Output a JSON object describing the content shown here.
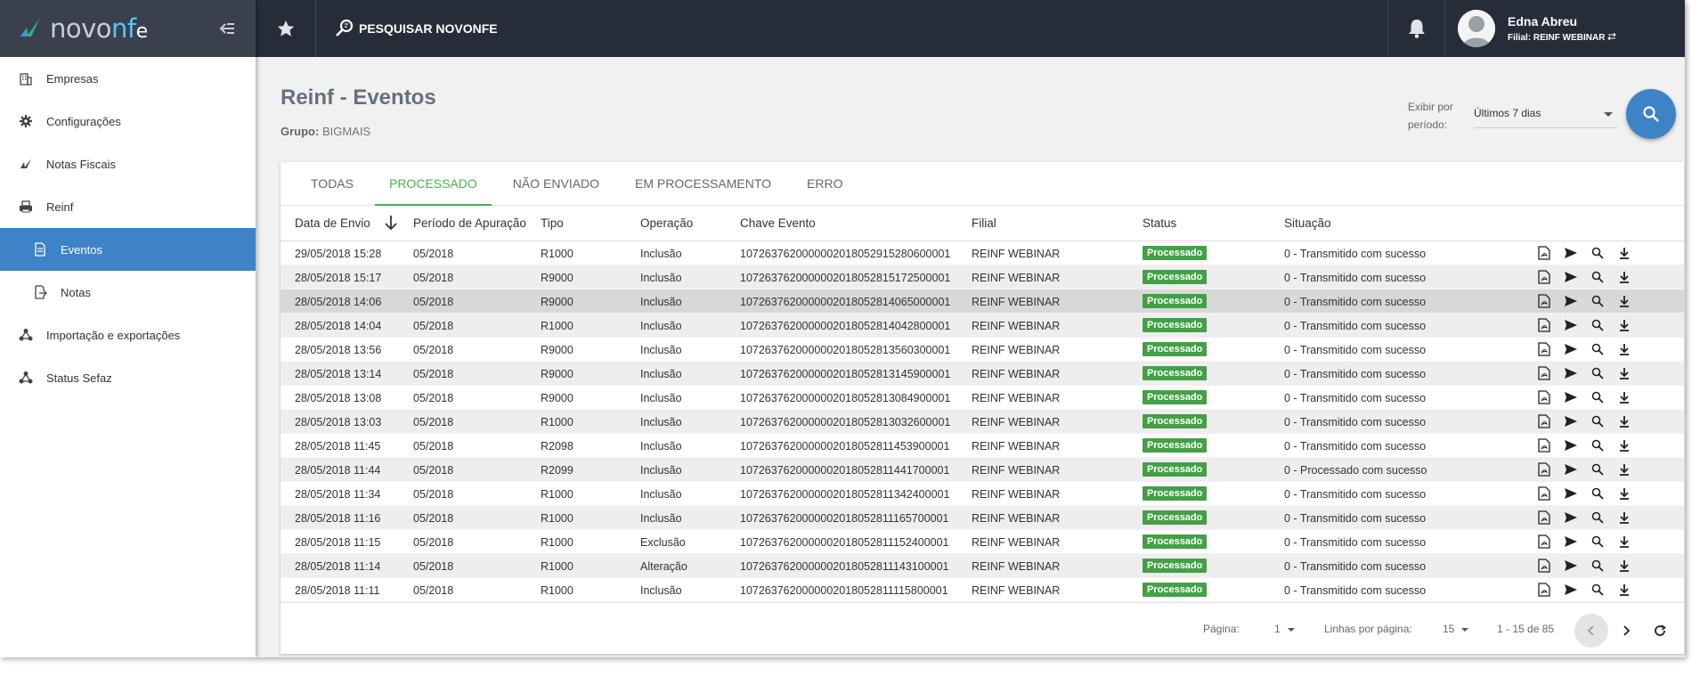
{
  "app": {
    "logo": {
      "part1": "novo",
      "part2": "nf",
      "part3": "e"
    }
  },
  "topbar": {
    "search_label": "PESQUISAR NOVONFE",
    "user_name": "Edna Abreu",
    "user_filial": "Filial: REINF WEBINAR"
  },
  "sidebar": {
    "items": [
      {
        "label": "Empresas",
        "icon": "building-icon"
      },
      {
        "label": "Configurações",
        "icon": "gear-icon"
      },
      {
        "label": "Notas Fiscais",
        "icon": "fiscal-notes-icon"
      },
      {
        "label": "Reinf",
        "icon": "printer-icon"
      },
      {
        "label": "Eventos",
        "icon": "document-icon"
      },
      {
        "label": "Notas",
        "icon": "exit-document-icon"
      },
      {
        "label": "Importação e exportações",
        "icon": "share-nodes-icon"
      },
      {
        "label": "Status Sefaz",
        "icon": "share-nodes-icon"
      }
    ]
  },
  "page": {
    "title": "Reinf - Eventos",
    "group_label": "Grupo:",
    "group_value": "BIGMAIS",
    "period_label": "Exibir por período:",
    "period_value": "Últimos 7 dias"
  },
  "tabs": [
    {
      "label": "TODAS",
      "active": false
    },
    {
      "label": "PROCESSADO",
      "active": true
    },
    {
      "label": "NÃO ENVIADO",
      "active": false
    },
    {
      "label": "EM PROCESSAMENTO",
      "active": false
    },
    {
      "label": "ERRO",
      "active": false
    }
  ],
  "table": {
    "headers": {
      "data": "Data de Envio",
      "periodo": "Período de Apuração",
      "tipo": "Tipo",
      "operacao": "Operação",
      "chave": "Chave Evento",
      "filial": "Filial",
      "status": "Status",
      "situacao": "Situação"
    },
    "rows": [
      [
        "29/05/2018 15:28",
        "05/2018",
        "R1000",
        "Inclusão",
        "1072637620000002018052915280600001",
        "REINF WEBINAR",
        "Processado",
        "0 - Transmitido com sucesso"
      ],
      [
        "28/05/2018 15:17",
        "05/2018",
        "R9000",
        "Inclusão",
        "1072637620000002018052815172500001",
        "REINF WEBINAR",
        "Processado",
        "0 - Transmitido com sucesso"
      ],
      [
        "28/05/2018 14:06",
        "05/2018",
        "R9000",
        "Inclusão",
        "1072637620000002018052814065000001",
        "REINF WEBINAR",
        "Processado",
        "0 - Transmitido com sucesso"
      ],
      [
        "28/05/2018 14:04",
        "05/2018",
        "R1000",
        "Inclusão",
        "1072637620000002018052814042800001",
        "REINF WEBINAR",
        "Processado",
        "0 - Transmitido com sucesso"
      ],
      [
        "28/05/2018 13:56",
        "05/2018",
        "R9000",
        "Inclusão",
        "1072637620000002018052813560300001",
        "REINF WEBINAR",
        "Processado",
        "0 - Transmitido com sucesso"
      ],
      [
        "28/05/2018 13:14",
        "05/2018",
        "R9000",
        "Inclusão",
        "1072637620000002018052813145900001",
        "REINF WEBINAR",
        "Processado",
        "0 - Transmitido com sucesso"
      ],
      [
        "28/05/2018 13:08",
        "05/2018",
        "R9000",
        "Inclusão",
        "1072637620000002018052813084900001",
        "REINF WEBINAR",
        "Processado",
        "0 - Transmitido com sucesso"
      ],
      [
        "28/05/2018 13:03",
        "05/2018",
        "R1000",
        "Inclusão",
        "1072637620000002018052813032600001",
        "REINF WEBINAR",
        "Processado",
        "0 - Transmitido com sucesso"
      ],
      [
        "28/05/2018 11:45",
        "05/2018",
        "R2098",
        "Inclusão",
        "1072637620000002018052811453900001",
        "REINF WEBINAR",
        "Processado",
        "0 - Transmitido com sucesso"
      ],
      [
        "28/05/2018 11:44",
        "05/2018",
        "R2099",
        "Inclusão",
        "1072637620000002018052811441700001",
        "REINF WEBINAR",
        "Processado",
        "0 - Processado com sucesso"
      ],
      [
        "28/05/2018 11:34",
        "05/2018",
        "R1000",
        "Inclusão",
        "1072637620000002018052811342400001",
        "REINF WEBINAR",
        "Processado",
        "0 - Transmitido com sucesso"
      ],
      [
        "28/05/2018 11:16",
        "05/2018",
        "R1000",
        "Inclusão",
        "1072637620000002018052811165700001",
        "REINF WEBINAR",
        "Processado",
        "0 - Transmitido com sucesso"
      ],
      [
        "28/05/2018 11:15",
        "05/2018",
        "R1000",
        "Exclusão",
        "1072637620000002018052811152400001",
        "REINF WEBINAR",
        "Processado",
        "0 - Transmitido com sucesso"
      ],
      [
        "28/05/2018 11:14",
        "05/2018",
        "R1000",
        "Alteração",
        "1072637620000002018052811143100001",
        "REINF WEBINAR",
        "Processado",
        "0 - Transmitido com sucesso"
      ],
      [
        "28/05/2018 11:11",
        "05/2018",
        "R1000",
        "Inclusão",
        "1072637620000002018052811115800001",
        "REINF WEBINAR",
        "Processado",
        "0 - Transmitido com sucesso"
      ]
    ]
  },
  "footer": {
    "page_label": "Página:",
    "page_value": "1",
    "rows_label": "Linhas por página:",
    "rows_value": "15",
    "range": "1 - 15 de 85"
  },
  "colors": {
    "topbar": "#262d38",
    "accent": "#3e83c6",
    "active_tab": "#4caf50",
    "badge": "#43a047"
  }
}
